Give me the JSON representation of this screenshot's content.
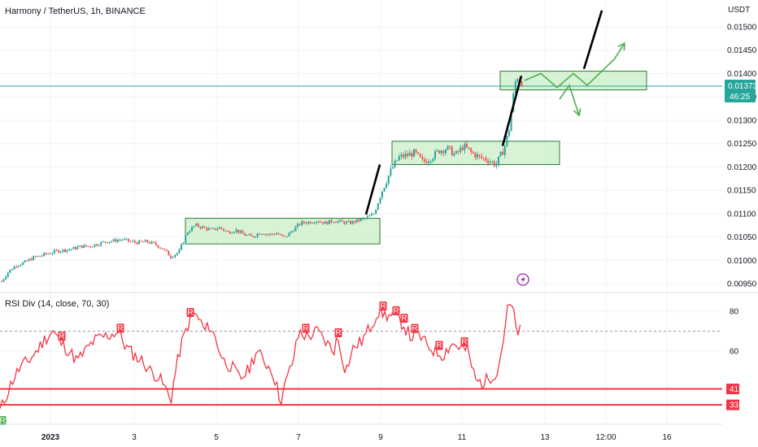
{
  "header": {
    "title": "Harmony / TetherUS, 1h, BINANCE"
  },
  "price_axis": {
    "unit_label": "USDT",
    "ticks": [
      "0.01500",
      "0.01450",
      "0.01400",
      "0.01350",
      "0.01300",
      "0.01250",
      "0.01200",
      "0.01150",
      "0.01100",
      "0.01050",
      "0.01000",
      "0.00950"
    ],
    "current_price": "0.01373",
    "countdown": "46:25"
  },
  "time_axis": {
    "ticks": [
      "2023",
      "3",
      "5",
      "7",
      "9",
      "11",
      "13",
      "12:00",
      "16"
    ]
  },
  "indicator": {
    "title": "RSI Div (14, close, 70, 30)",
    "axis_ticks": [
      "80",
      "60"
    ],
    "overbought": 70,
    "levels": [
      "41",
      "33"
    ],
    "marker_bear": "R",
    "marker_bull": "R"
  },
  "colors": {
    "up": "#26a69a",
    "down": "#ef5350",
    "zone_fill": "#c8ecc3",
    "zone_stroke": "#2e7d32",
    "projection": "#4caf50",
    "rsi": "#f23645",
    "price_line": "#26a69a",
    "event_icon": "#9c27b0"
  },
  "icons": {
    "event": "lightning-bolt-icon"
  },
  "chart_data": {
    "type": "candlestick",
    "symbol": "Harmony / TetherUS",
    "interval": "1h",
    "exchange": "BINANCE",
    "last_price": 0.01373,
    "y_range": [
      0.0093,
      0.0153
    ],
    "zones": [
      {
        "from": 0.01035,
        "to": 0.0109
      },
      {
        "from": 0.01205,
        "to": 0.01255
      },
      {
        "from": 0.01365,
        "to": 0.01405
      }
    ],
    "price_path": [
      [
        0,
        0.0095
      ],
      [
        10,
        0.00975
      ],
      [
        20,
        0.0099
      ],
      [
        30,
        0.00995
      ],
      [
        40,
        0.01005
      ],
      [
        50,
        0.0101
      ],
      [
        60,
        0.01015
      ],
      [
        70,
        0.0102
      ],
      [
        80,
        0.01022
      ],
      [
        90,
        0.01025
      ],
      [
        100,
        0.0103
      ],
      [
        110,
        0.0103
      ],
      [
        120,
        0.01035
      ],
      [
        130,
        0.0104
      ],
      [
        140,
        0.01042
      ],
      [
        150,
        0.01045
      ],
      [
        160,
        0.0104
      ],
      [
        170,
        0.01038
      ],
      [
        180,
        0.0104
      ],
      [
        190,
        0.01035
      ],
      [
        200,
        0.01025
      ],
      [
        210,
        0.01008
      ],
      [
        220,
        0.01018
      ],
      [
        230,
        0.0106
      ],
      [
        240,
        0.01075
      ],
      [
        250,
        0.0107
      ],
      [
        260,
        0.01065
      ],
      [
        270,
        0.0107
      ],
      [
        280,
        0.0106
      ],
      [
        290,
        0.01065
      ],
      [
        300,
        0.01055
      ],
      [
        310,
        0.0105
      ],
      [
        320,
        0.0106
      ],
      [
        330,
        0.01055
      ],
      [
        340,
        0.01058
      ],
      [
        350,
        0.01048
      ],
      [
        360,
        0.01065
      ],
      [
        370,
        0.0108
      ],
      [
        380,
        0.01082
      ],
      [
        390,
        0.01085
      ],
      [
        400,
        0.0108
      ],
      [
        410,
        0.01085
      ],
      [
        420,
        0.01082
      ],
      [
        430,
        0.0108
      ],
      [
        440,
        0.01085
      ],
      [
        450,
        0.0109
      ],
      [
        460,
        0.011
      ],
      [
        470,
        0.0115
      ],
      [
        480,
        0.0119
      ],
      [
        490,
        0.0122
      ],
      [
        500,
        0.01225
      ],
      [
        510,
        0.0123
      ],
      [
        520,
        0.0121
      ],
      [
        530,
        0.0122
      ],
      [
        540,
        0.01235
      ],
      [
        550,
        0.0124
      ],
      [
        560,
        0.01225
      ],
      [
        570,
        0.01245
      ],
      [
        580,
        0.0123
      ],
      [
        590,
        0.0122
      ],
      [
        600,
        0.01215
      ],
      [
        610,
        0.01205
      ],
      [
        620,
        0.0124
      ],
      [
        626,
        0.0128
      ],
      [
        630,
        0.0134
      ],
      [
        635,
        0.01395
      ],
      [
        640,
        0.01385
      ],
      [
        645,
        0.01373
      ]
    ],
    "projection_path": [
      [
        645,
        0.01385
      ],
      [
        665,
        0.014
      ],
      [
        685,
        0.0137
      ],
      [
        705,
        0.014
      ],
      [
        722,
        0.01375
      ],
      [
        740,
        0.01405
      ],
      [
        755,
        0.0143
      ],
      [
        768,
        0.01465
      ]
    ],
    "projection_alt_path": [
      [
        688,
        0.01345
      ],
      [
        700,
        0.01375
      ],
      [
        712,
        0.0131
      ]
    ],
    "impulse_lines": [
      [
        [
          450,
          0.01098
        ],
        [
          467,
          0.01205
        ]
      ],
      [
        [
          618,
          0.01245
        ],
        [
          641,
          0.01395
        ]
      ],
      [
        [
          718,
          0.0141
        ],
        [
          740,
          0.01535
        ]
      ]
    ],
    "rsi": {
      "scale": [
        30,
        84
      ],
      "levels": [
        41,
        33
      ],
      "values": [
        [
          0,
          30
        ],
        [
          8,
          38
        ],
        [
          15,
          45
        ],
        [
          25,
          52
        ],
        [
          35,
          55
        ],
        [
          45,
          60
        ],
        [
          55,
          66
        ],
        [
          65,
          70
        ],
        [
          75,
          64
        ],
        [
          85,
          60
        ],
        [
          95,
          55
        ],
        [
          105,
          60
        ],
        [
          115,
          65
        ],
        [
          125,
          67
        ],
        [
          135,
          68
        ],
        [
          145,
          70
        ],
        [
          155,
          62
        ],
        [
          165,
          58
        ],
        [
          175,
          55
        ],
        [
          185,
          50
        ],
        [
          195,
          47
        ],
        [
          205,
          40
        ],
        [
          210,
          35
        ],
        [
          215,
          48
        ],
        [
          222,
          62
        ],
        [
          230,
          72
        ],
        [
          238,
          79
        ],
        [
          245,
          76
        ],
        [
          252,
          70
        ],
        [
          258,
          73
        ],
        [
          265,
          66
        ],
        [
          275,
          55
        ],
        [
          285,
          52
        ],
        [
          295,
          46
        ],
        [
          305,
          50
        ],
        [
          315,
          60
        ],
        [
          325,
          55
        ],
        [
          335,
          50
        ],
        [
          345,
          35
        ],
        [
          352,
          45
        ],
        [
          360,
          55
        ],
        [
          368,
          70
        ],
        [
          378,
          67
        ],
        [
          390,
          70
        ],
        [
          400,
          65
        ],
        [
          410,
          60
        ],
        [
          415,
          67
        ],
        [
          425,
          50
        ],
        [
          435,
          62
        ],
        [
          445,
          65
        ],
        [
          455,
          72
        ],
        [
          465,
          80
        ],
        [
          475,
          78
        ],
        [
          485,
          77
        ],
        [
          495,
          74
        ],
        [
          505,
          67
        ],
        [
          515,
          68
        ],
        [
          525,
          63
        ],
        [
          535,
          60
        ],
        [
          545,
          58
        ],
        [
          555,
          64
        ],
        [
          565,
          62
        ],
        [
          575,
          60
        ],
        [
          585,
          45
        ],
        [
          595,
          44
        ],
        [
          605,
          48
        ],
        [
          612,
          50
        ],
        [
          618,
          64
        ],
        [
          625,
          83
        ],
        [
          630,
          82
        ],
        [
          635,
          70
        ],
        [
          642,
          70
        ]
      ],
      "markers_bear_x": [
        76,
        148,
        234,
        376,
        416,
        471,
        487,
        497,
        510,
        540,
        571
      ],
      "marker_bull_x": [
        3
      ]
    }
  }
}
